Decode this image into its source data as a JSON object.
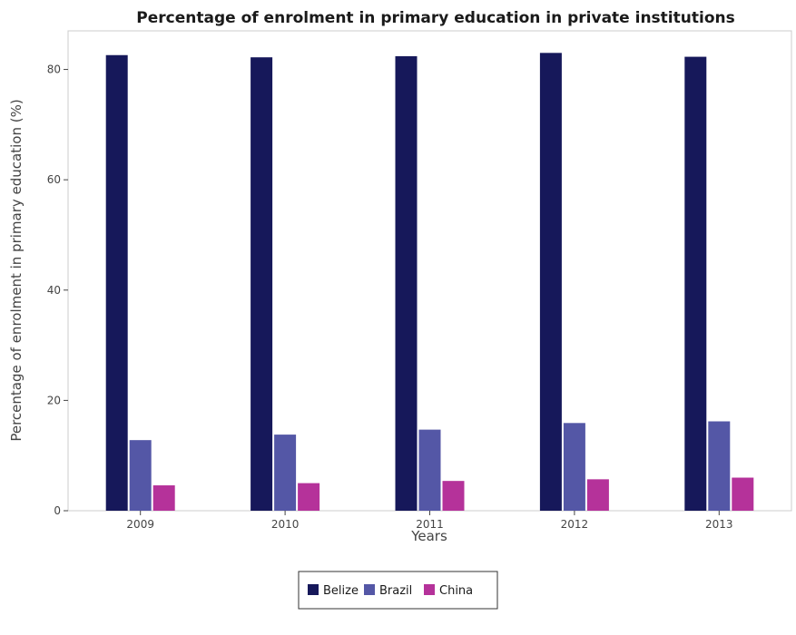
{
  "chart_data": {
    "type": "bar",
    "title": "Percentage of enrolment in primary education in private institutions",
    "xlabel": "Years",
    "ylabel": "Percentage of enrolment in primary education (%)",
    "categories": [
      "2009",
      "2010",
      "2011",
      "2012",
      "2013"
    ],
    "ylim": [
      0,
      87
    ],
    "yticks": [
      0,
      20,
      40,
      60,
      80
    ],
    "grid": false,
    "legend_position": "bottom-center",
    "series": [
      {
        "name": "Belize",
        "color": "#16185a",
        "values": [
          82.6,
          82.2,
          82.4,
          83.0,
          82.3
        ]
      },
      {
        "name": "Brazil",
        "color": "#5457a6",
        "values": [
          12.8,
          13.8,
          14.7,
          15.9,
          16.2
        ]
      },
      {
        "name": "China",
        "color": "#b5329a",
        "values": [
          4.6,
          5.0,
          5.4,
          5.7,
          6.0
        ]
      }
    ]
  }
}
